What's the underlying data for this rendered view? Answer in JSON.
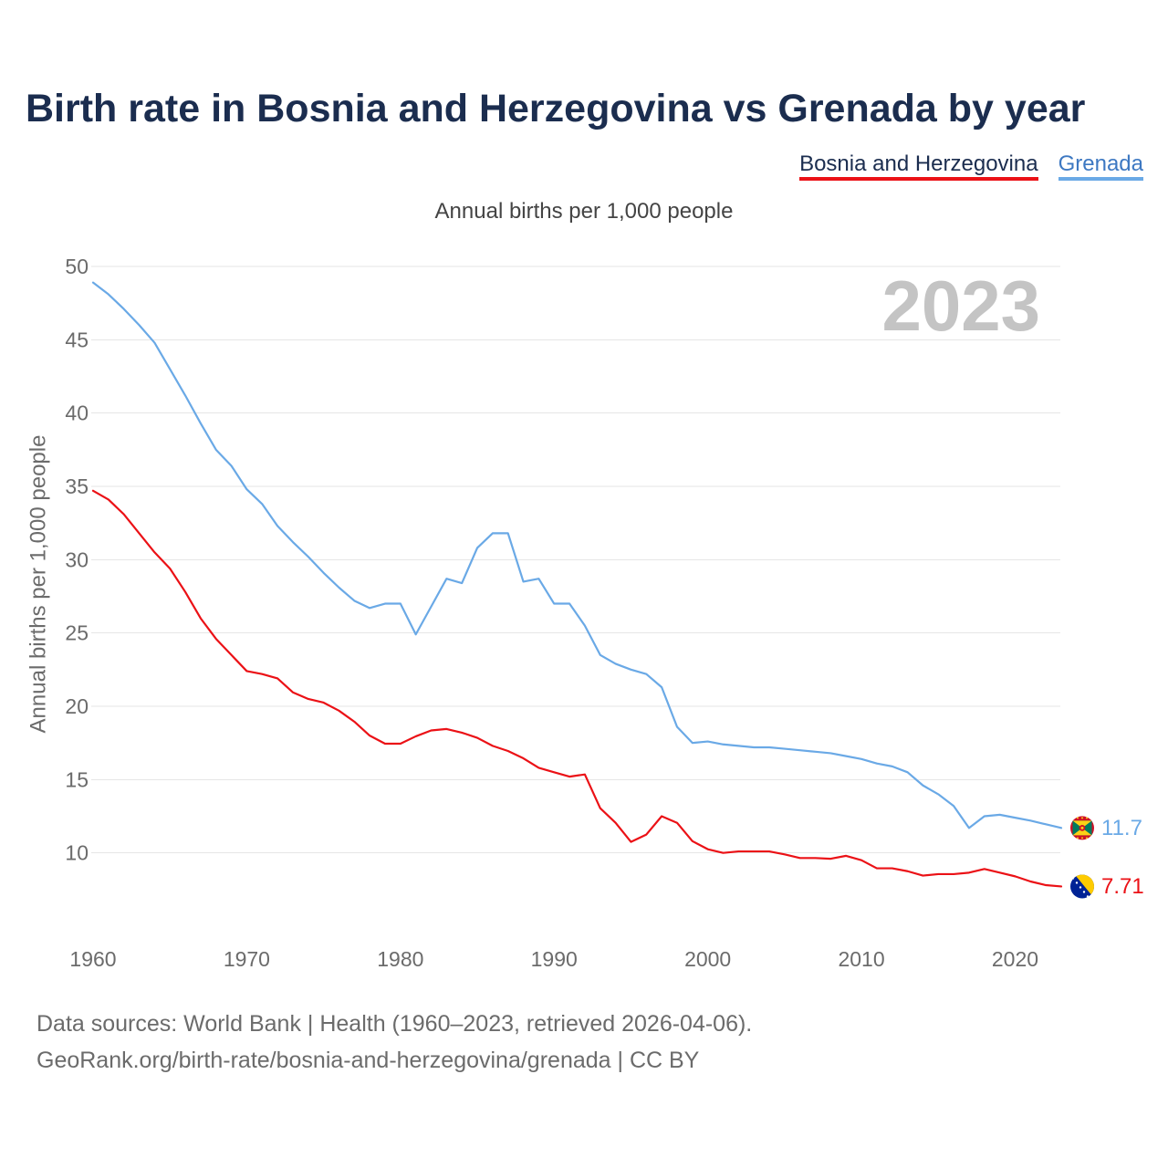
{
  "chart_data": {
    "type": "line",
    "title": "Birth rate in Bosnia and Herzegovina vs Grenada by year",
    "subtitle": "Annual births per 1,000 people",
    "xlabel": "",
    "ylabel": "Annual births per 1,000 people",
    "year_annotation": "2023",
    "grid": true,
    "legend_position": "top-right",
    "xlim": [
      1960,
      2023
    ],
    "ylim": [
      5,
      50
    ],
    "x_ticks": [
      1960,
      1970,
      1980,
      1990,
      2000,
      2010,
      2020
    ],
    "y_ticks": [
      10,
      15,
      20,
      25,
      30,
      35,
      40,
      45,
      50
    ],
    "x": [
      1960,
      1961,
      1962,
      1963,
      1964,
      1965,
      1966,
      1967,
      1968,
      1969,
      1970,
      1971,
      1972,
      1973,
      1974,
      1975,
      1976,
      1977,
      1978,
      1979,
      1980,
      1981,
      1982,
      1983,
      1984,
      1985,
      1986,
      1987,
      1988,
      1989,
      1990,
      1991,
      1992,
      1993,
      1994,
      1995,
      1996,
      1997,
      1998,
      1999,
      2000,
      2001,
      2002,
      2003,
      2004,
      2005,
      2006,
      2007,
      2008,
      2009,
      2010,
      2011,
      2012,
      2013,
      2014,
      2015,
      2016,
      2017,
      2018,
      2019,
      2020,
      2021,
      2022,
      2023
    ],
    "series": [
      {
        "name": "Bosnia and Herzegovina",
        "color": "#eb1116",
        "end_label": "7.71",
        "flag_icon": "bosnia-and-herzegovina-flag-icon",
        "values": [
          34.7,
          34.1,
          33.1,
          31.8,
          30.5,
          29.4,
          27.8,
          26.0,
          24.6,
          23.5,
          22.4,
          22.2,
          21.9,
          20.95,
          20.5,
          20.25,
          19.7,
          18.95,
          18.0,
          17.45,
          17.45,
          17.95,
          18.35,
          18.45,
          18.2,
          17.85,
          17.3,
          16.95,
          16.45,
          15.8,
          15.5,
          15.2,
          15.35,
          13.05,
          12.05,
          10.75,
          11.25,
          12.5,
          12.05,
          10.8,
          10.25,
          10.0,
          10.1,
          10.1,
          10.1,
          9.9,
          9.65,
          9.65,
          9.6,
          9.8,
          9.5,
          8.95,
          8.95,
          8.75,
          8.45,
          8.55,
          8.55,
          8.65,
          8.9,
          8.65,
          8.4,
          8.05,
          7.8,
          7.71
        ]
      },
      {
        "name": "Grenada",
        "color": "#6aa9e6",
        "end_label": "11.7",
        "flag_icon": "grenada-flag-icon",
        "values": [
          48.9,
          48.1,
          47.1,
          46.0,
          44.8,
          43.0,
          41.2,
          39.3,
          37.5,
          36.4,
          34.8,
          33.8,
          32.3,
          31.2,
          30.2,
          29.1,
          28.1,
          27.2,
          26.7,
          27.0,
          27.0,
          24.9,
          26.8,
          28.7,
          28.4,
          30.8,
          31.8,
          31.8,
          28.5,
          28.7,
          27.0,
          27.0,
          25.5,
          23.5,
          22.9,
          22.5,
          22.2,
          21.3,
          18.6,
          17.5,
          17.6,
          17.4,
          17.3,
          17.2,
          17.2,
          17.1,
          17.0,
          16.9,
          16.8,
          16.6,
          16.4,
          16.1,
          15.9,
          15.5,
          14.6,
          14.0,
          13.2,
          11.7,
          12.5,
          12.6,
          12.4,
          12.2,
          11.95,
          11.7
        ]
      }
    ]
  },
  "footer": {
    "sources": "Data sources: World Bank | Health (1960–2023, retrieved 2026-04-06).",
    "attribution": "GeoRank.org/birth-rate/bosnia-and-herzegovina/grenada | CC BY"
  }
}
